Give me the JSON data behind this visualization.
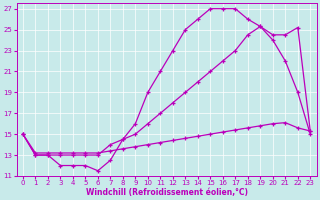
{
  "xlabel": "Windchill (Refroidissement éolien,°C)",
  "bg_color": "#c8eaea",
  "line_color": "#bb00bb",
  "xlim": [
    -0.5,
    23.5
  ],
  "ylim": [
    11,
    27.5
  ],
  "xticks": [
    0,
    1,
    2,
    3,
    4,
    5,
    6,
    7,
    8,
    9,
    10,
    11,
    12,
    13,
    14,
    15,
    16,
    17,
    18,
    19,
    20,
    21,
    22,
    23
  ],
  "yticks": [
    11,
    13,
    15,
    17,
    19,
    21,
    23,
    25,
    27
  ],
  "line1_x": [
    0,
    1,
    2,
    3,
    4,
    5,
    6,
    7,
    8,
    9,
    10,
    11,
    12,
    13,
    14,
    15,
    16,
    17,
    18,
    19,
    20,
    21,
    22,
    23
  ],
  "line1_y": [
    15,
    13,
    13,
    12,
    12,
    12,
    11.5,
    12.5,
    14.5,
    16,
    19,
    21,
    23,
    25,
    26,
    27,
    27,
    27,
    26,
    25.3,
    24,
    22,
    19,
    15
  ],
  "line2_x": [
    0,
    1,
    2,
    3,
    4,
    5,
    6,
    7,
    8,
    9,
    10,
    11,
    12,
    13,
    14,
    15,
    16,
    17,
    18,
    19,
    20,
    21,
    22,
    23
  ],
  "line2_y": [
    15,
    13,
    13,
    13,
    13,
    13,
    13,
    14,
    14.5,
    15,
    16,
    17,
    18,
    19,
    20,
    21,
    22,
    23,
    24.5,
    25.3,
    24.5,
    24.5,
    25.2,
    15.3
  ],
  "line3_x": [
    0,
    1,
    2,
    3,
    4,
    5,
    6,
    7,
    8,
    9,
    10,
    11,
    12,
    13,
    14,
    15,
    16,
    17,
    18,
    19,
    20,
    21,
    22,
    23
  ],
  "line3_y": [
    15,
    13.2,
    13.2,
    13.2,
    13.2,
    13.2,
    13.2,
    13.4,
    13.6,
    13.8,
    14.0,
    14.2,
    14.4,
    14.6,
    14.8,
    15.0,
    15.2,
    15.4,
    15.6,
    15.8,
    16.0,
    16.1,
    15.6,
    15.3
  ]
}
